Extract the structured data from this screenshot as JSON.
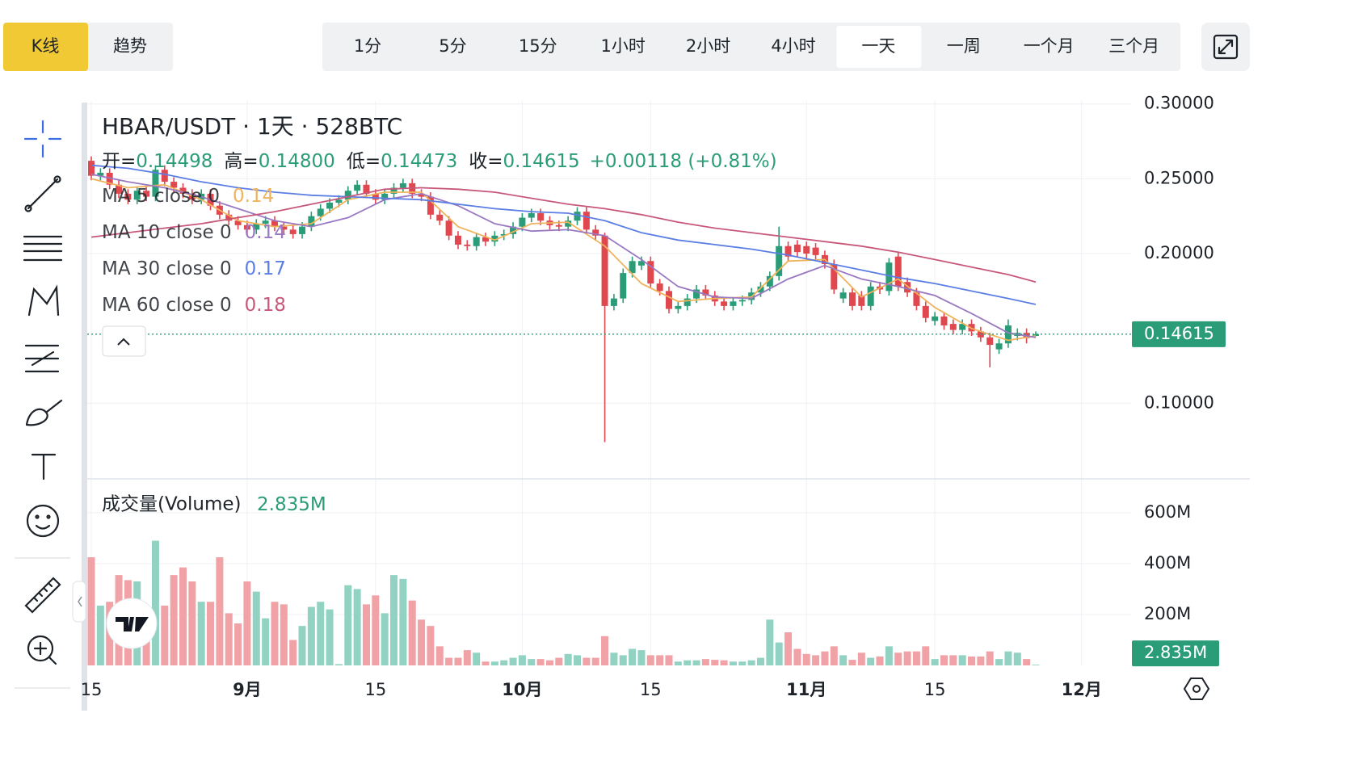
{
  "toolbar": {
    "chart_types": [
      "K线",
      "趋势"
    ],
    "active_chart_type": 0,
    "intervals": [
      "1分",
      "5分",
      "15分",
      "1小时",
      "2小时",
      "4小时",
      "一天",
      "一周",
      "一个月",
      "三个月"
    ],
    "active_interval": 6
  },
  "chart_data": {
    "type": "candlestick",
    "title": "HBAR/USDT · 1天 · 528BTC",
    "ohlc_legend": [
      {
        "label": "开=",
        "value": "0.14498"
      },
      {
        "label": "高=",
        "value": "0.14800"
      },
      {
        "label": "低=",
        "value": "0.14473"
      },
      {
        "label": "收=",
        "value": "0.14615"
      }
    ],
    "change": "+0.00118 (+0.81%)",
    "up_color": "#2a9d78",
    "down_color": "#e0474f",
    "volume_up_color": "#92d2c2",
    "volume_down_color": "#f0a2a6",
    "xlim": [
      -0.44,
      113.4
    ],
    "xticks": [
      {
        "value": 0,
        "label": "15"
      },
      {
        "value": 17,
        "label": "9月"
      },
      {
        "value": 31,
        "label": "15"
      },
      {
        "value": 47,
        "label": "10月"
      },
      {
        "value": 61,
        "label": "15"
      },
      {
        "value": 78,
        "label": "11月"
      },
      {
        "value": 92,
        "label": "15"
      },
      {
        "value": 108,
        "label": "12月"
      }
    ],
    "ylim": [
      0.05,
      0.302
    ],
    "yticks": [
      {
        "value": 0.3,
        "label": "0.30000"
      },
      {
        "value": 0.25,
        "label": "0.25000"
      },
      {
        "value": 0.2,
        "label": "0.20000"
      },
      {
        "value": 0.1,
        "label": "0.10000"
      }
    ],
    "grid": true,
    "last_price": {
      "value": 0.14615,
      "label": "0.14615"
    },
    "open": [
      0.262,
      0.252,
      0.254,
      0.246,
      0.24,
      0.236,
      0.242,
      0.238,
      0.256,
      0.248,
      0.244,
      0.24,
      0.236,
      0.24,
      0.232,
      0.226,
      0.222,
      0.219,
      0.216,
      0.22,
      0.222,
      0.218,
      0.216,
      0.213,
      0.218,
      0.225,
      0.23,
      0.234,
      0.236,
      0.242,
      0.246,
      0.24,
      0.236,
      0.24,
      0.244,
      0.247,
      0.24,
      0.238,
      0.226,
      0.222,
      0.212,
      0.206,
      0.205,
      0.211,
      0.208,
      0.212,
      0.213,
      0.218,
      0.224,
      0.227,
      0.222,
      0.219,
      0.218,
      0.222,
      0.228,
      0.216,
      0.212,
      0.165,
      0.17,
      0.187,
      0.192,
      0.195,
      0.18,
      0.175,
      0.163,
      0.165,
      0.17,
      0.176,
      0.172,
      0.168,
      0.165,
      0.168,
      0.169,
      0.174,
      0.178,
      0.185,
      0.205,
      0.206,
      0.205,
      0.204,
      0.199,
      0.193,
      0.17,
      0.174,
      0.172,
      0.165,
      0.178,
      0.175,
      0.198,
      0.181,
      0.174,
      0.165,
      0.155,
      0.158,
      0.153,
      0.149,
      0.153,
      0.148,
      0.144,
      0.136,
      0.14,
      0.145,
      0.147,
      0.14498
    ],
    "high": [
      0.265,
      0.257,
      0.257,
      0.249,
      0.243,
      0.245,
      0.245,
      0.259,
      0.259,
      0.251,
      0.247,
      0.243,
      0.243,
      0.243,
      0.235,
      0.229,
      0.225,
      0.222,
      0.223,
      0.225,
      0.225,
      0.221,
      0.219,
      0.221,
      0.228,
      0.233,
      0.237,
      0.239,
      0.245,
      0.249,
      0.249,
      0.243,
      0.243,
      0.247,
      0.25,
      0.25,
      0.243,
      0.241,
      0.229,
      0.225,
      0.215,
      0.209,
      0.214,
      0.214,
      0.215,
      0.216,
      0.221,
      0.227,
      0.23,
      0.23,
      0.225,
      0.222,
      0.225,
      0.231,
      0.231,
      0.219,
      0.214,
      0.173,
      0.19,
      0.198,
      0.198,
      0.198,
      0.183,
      0.178,
      0.168,
      0.173,
      0.179,
      0.179,
      0.175,
      0.171,
      0.171,
      0.172,
      0.177,
      0.181,
      0.188,
      0.218,
      0.208,
      0.209,
      0.208,
      0.207,
      0.202,
      0.196,
      0.177,
      0.177,
      0.175,
      0.181,
      0.181,
      0.197,
      0.201,
      0.184,
      0.177,
      0.168,
      0.161,
      0.161,
      0.156,
      0.156,
      0.156,
      0.151,
      0.147,
      0.143,
      0.156,
      0.15,
      0.15,
      0.148
    ],
    "low": [
      0.249,
      0.249,
      0.243,
      0.237,
      0.233,
      0.233,
      0.235,
      0.235,
      0.245,
      0.241,
      0.237,
      0.233,
      0.233,
      0.229,
      0.223,
      0.219,
      0.216,
      0.213,
      0.213,
      0.217,
      0.215,
      0.213,
      0.21,
      0.21,
      0.215,
      0.222,
      0.227,
      0.231,
      0.233,
      0.239,
      0.237,
      0.233,
      0.233,
      0.237,
      0.241,
      0.237,
      0.235,
      0.223,
      0.219,
      0.209,
      0.203,
      0.202,
      0.202,
      0.205,
      0.205,
      0.209,
      0.21,
      0.215,
      0.221,
      0.219,
      0.216,
      0.215,
      0.215,
      0.219,
      0.213,
      0.209,
      0.074,
      0.162,
      0.167,
      0.184,
      0.189,
      0.177,
      0.172,
      0.16,
      0.16,
      0.162,
      0.167,
      0.169,
      0.165,
      0.162,
      0.162,
      0.165,
      0.166,
      0.171,
      0.175,
      0.182,
      0.195,
      0.198,
      0.197,
      0.196,
      0.19,
      0.173,
      0.167,
      0.162,
      0.162,
      0.162,
      0.173,
      0.172,
      0.175,
      0.171,
      0.162,
      0.154,
      0.152,
      0.149,
      0.146,
      0.146,
      0.145,
      0.141,
      0.124,
      0.133,
      0.137,
      0.142,
      0.14,
      0.14473
    ],
    "close": [
      0.252,
      0.254,
      0.246,
      0.24,
      0.236,
      0.242,
      0.238,
      0.256,
      0.248,
      0.244,
      0.24,
      0.236,
      0.24,
      0.232,
      0.226,
      0.222,
      0.219,
      0.216,
      0.22,
      0.222,
      0.218,
      0.216,
      0.213,
      0.218,
      0.225,
      0.23,
      0.234,
      0.236,
      0.242,
      0.246,
      0.24,
      0.236,
      0.24,
      0.244,
      0.247,
      0.24,
      0.238,
      0.226,
      0.222,
      0.212,
      0.206,
      0.205,
      0.211,
      0.208,
      0.212,
      0.213,
      0.218,
      0.224,
      0.227,
      0.222,
      0.219,
      0.218,
      0.222,
      0.228,
      0.216,
      0.212,
      0.165,
      0.17,
      0.187,
      0.195,
      0.195,
      0.18,
      0.175,
      0.163,
      0.165,
      0.17,
      0.176,
      0.172,
      0.168,
      0.165,
      0.168,
      0.169,
      0.174,
      0.178,
      0.185,
      0.205,
      0.198,
      0.201,
      0.2,
      0.199,
      0.193,
      0.176,
      0.174,
      0.165,
      0.165,
      0.178,
      0.176,
      0.194,
      0.178,
      0.174,
      0.165,
      0.157,
      0.158,
      0.152,
      0.149,
      0.153,
      0.148,
      0.144,
      0.139,
      0.14,
      0.152,
      0.147,
      0.1435,
      0.14615
    ],
    "ma": [
      {
        "name": "MA 5 close 0",
        "legend_value": "0.14",
        "color": "#f0b35b",
        "x": [
          0,
          4,
          8,
          12,
          16,
          20,
          24,
          28,
          32,
          36,
          40,
          44,
          48,
          52,
          56,
          60,
          64,
          68,
          72,
          76,
          80,
          84,
          88,
          92,
          96,
          100,
          103
        ],
        "values": [
          0.25,
          0.244,
          0.246,
          0.236,
          0.222,
          0.218,
          0.22,
          0.236,
          0.241,
          0.241,
          0.218,
          0.209,
          0.22,
          0.221,
          0.205,
          0.18,
          0.168,
          0.17,
          0.171,
          0.195,
          0.196,
          0.171,
          0.183,
          0.164,
          0.15,
          0.142,
          0.145
        ]
      },
      {
        "name": "MA 10 close 0",
        "legend_value": "0.14",
        "color": "#9a78c2",
        "x": [
          0,
          4,
          8,
          12,
          16,
          20,
          24,
          28,
          32,
          36,
          40,
          44,
          48,
          52,
          56,
          60,
          64,
          68,
          72,
          76,
          80,
          84,
          88,
          92,
          96,
          100,
          103
        ],
        "values": [
          0.253,
          0.248,
          0.244,
          0.238,
          0.23,
          0.222,
          0.218,
          0.224,
          0.236,
          0.24,
          0.232,
          0.22,
          0.215,
          0.216,
          0.212,
          0.196,
          0.178,
          0.171,
          0.17,
          0.183,
          0.192,
          0.183,
          0.178,
          0.172,
          0.16,
          0.147,
          0.144
        ]
      },
      {
        "name": "MA 30 close 0",
        "legend_value": "0.17",
        "color": "#5b7ee5",
        "x": [
          0,
          4,
          8,
          12,
          16,
          20,
          24,
          28,
          32,
          36,
          40,
          44,
          48,
          52,
          56,
          60,
          64,
          68,
          72,
          76,
          80,
          84,
          88,
          92,
          96,
          100,
          103
        ],
        "values": [
          0.259,
          0.257,
          0.253,
          0.248,
          0.244,
          0.241,
          0.239,
          0.238,
          0.237,
          0.236,
          0.233,
          0.23,
          0.228,
          0.227,
          0.222,
          0.214,
          0.209,
          0.206,
          0.203,
          0.199,
          0.194,
          0.189,
          0.184,
          0.18,
          0.175,
          0.17,
          0.166
        ]
      },
      {
        "name": "MA 60 close 0",
        "legend_value": "0.18",
        "color": "#c8587a",
        "x": [
          0,
          4,
          8,
          12,
          16,
          20,
          24,
          28,
          32,
          36,
          40,
          44,
          48,
          52,
          56,
          60,
          64,
          68,
          72,
          76,
          80,
          84,
          88,
          92,
          96,
          100,
          103
        ],
        "values": [
          0.211,
          0.214,
          0.217,
          0.22,
          0.224,
          0.228,
          0.233,
          0.238,
          0.243,
          0.244,
          0.243,
          0.241,
          0.237,
          0.233,
          0.23,
          0.226,
          0.221,
          0.217,
          0.214,
          0.211,
          0.208,
          0.205,
          0.201,
          0.196,
          0.191,
          0.186,
          0.181
        ]
      }
    ],
    "volume": {
      "title": "成交量(Volume)",
      "last_label": "2.835M",
      "ylim": [
        0,
        733
      ],
      "yticks": [
        {
          "value": 200,
          "label": "200M"
        },
        {
          "value": 400,
          "label": "400M"
        },
        {
          "value": 600,
          "label": "600M"
        }
      ],
      "values": [
        425,
        235,
        250,
        355,
        335,
        330,
        140,
        490,
        235,
        355,
        385,
        330,
        250,
        250,
        425,
        205,
        165,
        330,
        290,
        185,
        250,
        240,
        100,
        155,
        230,
        250,
        220,
        5,
        315,
        300,
        240,
        275,
        205,
        355,
        340,
        255,
        180,
        155,
        75,
        30,
        30,
        60,
        50,
        15,
        15,
        20,
        30,
        40,
        25,
        25,
        20,
        30,
        45,
        40,
        30,
        30,
        115,
        50,
        40,
        65,
        60,
        40,
        40,
        40,
        15,
        20,
        20,
        25,
        22,
        20,
        15,
        15,
        20,
        30,
        180,
        90,
        130,
        65,
        45,
        40,
        55,
        75,
        40,
        22,
        50,
        30,
        35,
        75,
        50,
        55,
        55,
        75,
        25,
        40,
        40,
        40,
        35,
        35,
        55,
        25,
        55,
        50,
        25,
        2.835
      ]
    }
  }
}
